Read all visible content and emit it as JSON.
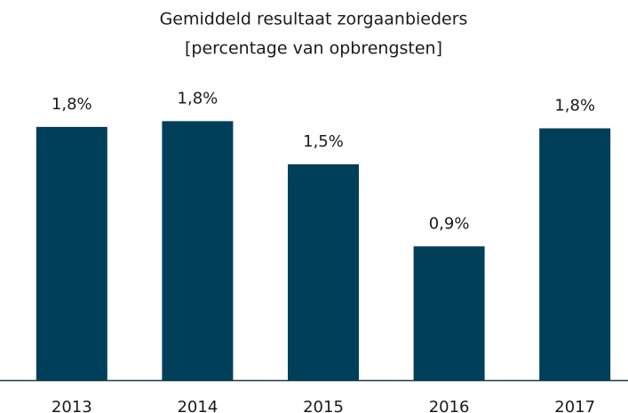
{
  "chart_data": {
    "type": "bar",
    "title": "Gemiddeld resultaat zorgaanbieders",
    "subtitle": "[percentage van opbrengsten]",
    "categories": [
      "2013",
      "2014",
      "2015",
      "2016",
      "2017"
    ],
    "values": [
      1.76,
      1.8,
      1.5,
      0.93,
      1.75
    ],
    "value_labels": [
      "1,8%",
      "1,8%",
      "1,5%",
      "0,9%",
      "1,8%"
    ],
    "color": "#003f5a"
  }
}
